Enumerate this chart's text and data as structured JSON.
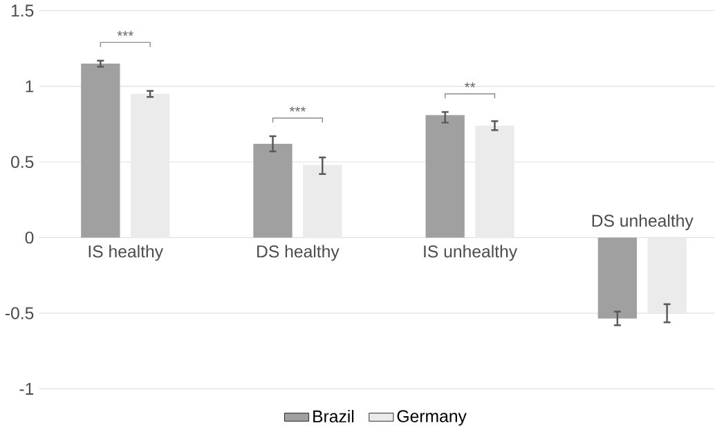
{
  "chart_data": {
    "type": "bar",
    "categories": [
      "IS healthy",
      "DS healthy",
      "IS unhealthy",
      "DS unhealthy"
    ],
    "series": [
      {
        "name": "Brazil",
        "color": "#a0a0a0",
        "values": [
          1.15,
          0.62,
          0.81,
          -0.535
        ],
        "errors": [
          [
            1.13,
            1.17
          ],
          [
            0.57,
            0.67
          ],
          [
            0.76,
            0.83
          ],
          [
            -0.58,
            -0.49
          ]
        ]
      },
      {
        "name": "Germany",
        "color": "#ebebeb",
        "values": [
          0.95,
          0.48,
          0.74,
          -0.5
        ],
        "errors": [
          [
            0.93,
            0.97
          ],
          [
            0.42,
            0.53
          ],
          [
            0.71,
            0.77
          ],
          [
            -0.56,
            -0.44
          ]
        ]
      }
    ],
    "ylim": [
      -1,
      1.5
    ],
    "yticks": [
      -1,
      -0.5,
      0,
      0.5,
      1,
      1.5
    ],
    "grid": "y",
    "legend": "bottom",
    "annotations": [
      "***",
      "***",
      "**"
    ]
  }
}
